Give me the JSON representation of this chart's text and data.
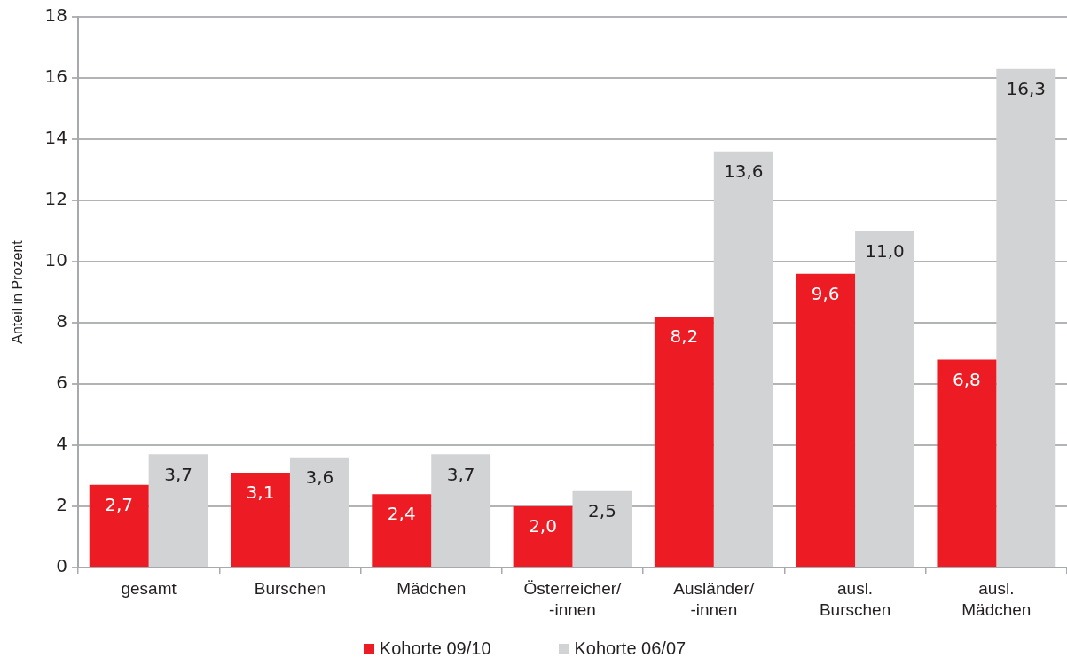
{
  "chart_data": {
    "type": "bar",
    "ylabel": "Anteil in Prozent",
    "categories": [
      "gesamt",
      "Burschen",
      "Mädchen",
      "Österreicher/-innen",
      "Ausländer/-innen",
      "ausl. Burschen",
      "ausl. Mädchen"
    ],
    "series": [
      {
        "name": "Kohorte 09/10",
        "color": "#ed1c24",
        "values": [
          2.7,
          3.1,
          2.4,
          2.0,
          8.2,
          9.6,
          6.8
        ],
        "value_labels": [
          "2,7",
          "3,1",
          "2,4",
          "2,0",
          "8,2",
          "9,6",
          "6,8"
        ]
      },
      {
        "name": "Kohorte 06/07",
        "color": "#d1d3d4",
        "values": [
          3.7,
          3.6,
          3.7,
          2.5,
          13.6,
          11.0,
          16.3
        ],
        "value_labels": [
          "3,7",
          "3,6",
          "3,7",
          "2,5",
          "13,6",
          "11,0",
          "16,3"
        ]
      }
    ],
    "ylim": [
      0,
      18
    ],
    "yticks": [
      0,
      2,
      4,
      6,
      8,
      10,
      12,
      14,
      16,
      18
    ],
    "grid": "y",
    "legend": "bottom"
  }
}
